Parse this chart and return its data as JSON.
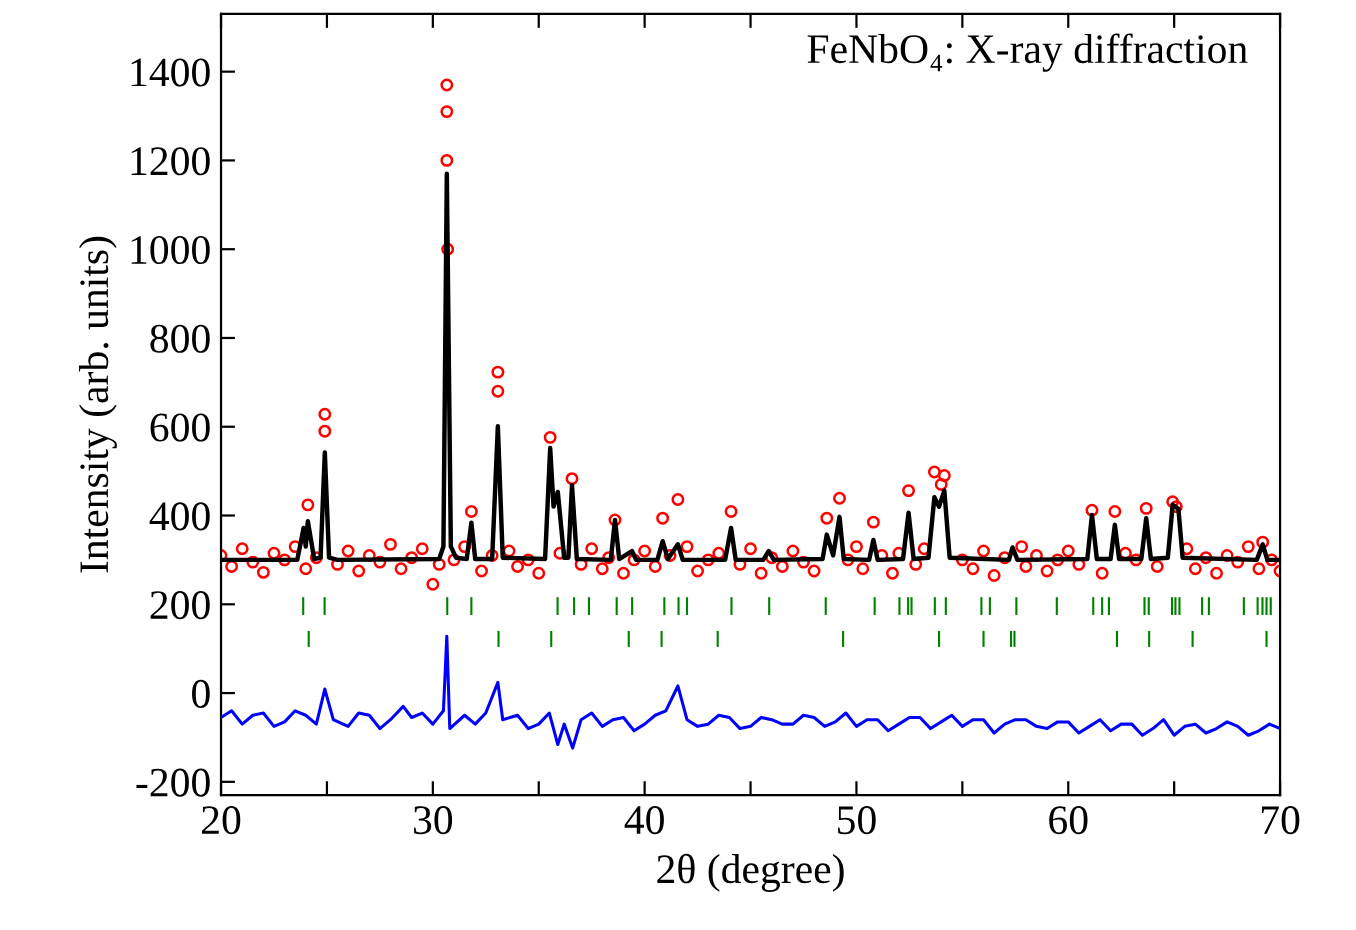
{
  "chart_data": {
    "type": "scatter",
    "xlabel": "2θ (degree)",
    "ylabel": "Intensity (arb. units)",
    "annotations": [
      "FeNbO₄: X-ray diffraction"
    ],
    "xlim": [
      20,
      70
    ],
    "xticks": [
      20,
      {
        "value": 25,
        "label": null
      },
      30,
      {
        "value": 35,
        "label": null
      },
      40,
      {
        "value": 45,
        "label": null
      },
      50,
      {
        "value": 55,
        "label": null
      },
      60,
      {
        "value": 65,
        "label": null
      },
      70
    ],
    "ylim": [
      -230,
      1530
    ],
    "yticks": [
      -200,
      0,
      200,
      400,
      600,
      800,
      1000,
      1200,
      1400
    ],
    "grid": false,
    "legend": false,
    "series": [
      {
        "marker": "circle",
        "color": "#ff0000",
        "x": [
          20,
          20.5,
          21,
          21.5,
          22,
          22.5,
          23,
          23.5,
          24,
          24.5,
          25.5,
          26,
          26.5,
          27,
          27.5,
          28,
          28.5,
          29,
          29.5,
          30,
          30.3,
          31,
          31.5,
          32.3,
          32.8,
          33.6,
          34,
          34.5,
          35,
          36,
          37,
          37.5,
          38,
          38.3,
          39,
          39.5,
          40,
          40.5,
          41.2,
          42,
          42.5,
          43,
          43.5,
          44.5,
          45,
          45.5,
          46,
          46.5,
          47,
          47.5,
          48,
          49.6,
          50,
          50.3,
          51.2,
          51.7,
          52,
          52.8,
          53.2,
          55,
          55.5,
          56,
          56.5,
          57,
          57.8,
          58,
          58.5,
          59,
          59.5,
          60,
          60.5,
          61.6,
          62.7,
          63.2,
          64.2,
          65.6,
          66,
          66.5,
          67,
          67.5,
          68,
          68.5,
          69,
          69.6,
          70,
          24.1,
          24.9,
          24.9,
          30.66,
          30.66,
          30.66,
          30.7,
          31.82,
          33.07,
          33.07,
          35.54,
          36.57,
          38.6,
          40.85,
          41.57,
          44.08,
          48.6,
          49.2,
          50.8,
          52.46,
          53.68,
          54.0,
          54.15,
          61.12,
          62.2,
          63.68,
          64.93,
          65.1,
          69.18
        ],
        "values": [
          310,
          285,
          325,
          295,
          272,
          315,
          300,
          330,
          280,
          305,
          290,
          320,
          275,
          310,
          295,
          335,
          280,
          305,
          325,
          245,
          290,
          300,
          330,
          275,
          310,
          320,
          285,
          300,
          270,
          315,
          290,
          325,
          280,
          305,
          270,
          300,
          320,
          285,
          310,
          330,
          275,
          300,
          315,
          290,
          325,
          270,
          305,
          285,
          320,
          295,
          275,
          300,
          330,
          280,
          310,
          270,
          315,
          290,
          325,
          300,
          280,
          320,
          265,
          305,
          330,
          285,
          310,
          275,
          300,
          320,
          290,
          270,
          315,
          300,
          285,
          325,
          280,
          305,
          270,
          310,
          295,
          330,
          280,
          300,
          275,
          424,
          628,
          590,
          1370,
          1310,
          1200,
          1000,
          409,
          723,
          680,
          576,
          483,
          390,
          394,
          436,
          409,
          394,
          439,
          385,
          456,
          498,
          470,
          490,
          412,
          409,
          416,
          431,
          420,
          340
        ]
      },
      {
        "type": "line",
        "color": "#000000",
        "x": [
          20,
          23.6,
          23.9,
          24.0,
          24.1,
          24.4,
          24.7,
          24.9,
          25.1,
          25.5,
          30.3,
          30.5,
          30.66,
          30.85,
          31.1,
          31.6,
          31.82,
          32.0,
          32.8,
          33.07,
          33.3,
          35.3,
          35.54,
          35.7,
          35.9,
          36.2,
          36.4,
          36.57,
          36.8,
          38.4,
          38.6,
          38.8,
          39.4,
          39.6,
          40.6,
          40.85,
          41.1,
          41.57,
          41.8,
          43.8,
          44.08,
          44.3,
          45.6,
          45.86,
          46.1,
          48.4,
          48.6,
          48.9,
          49.2,
          49.4,
          50.6,
          50.8,
          51.0,
          52.2,
          52.46,
          52.7,
          53.4,
          53.68,
          53.9,
          54.15,
          54.4,
          57.2,
          57.37,
          57.6,
          60.9,
          61.12,
          61.35,
          62.0,
          62.2,
          62.4,
          63.45,
          63.68,
          63.9,
          64.7,
          64.93,
          65.2,
          65.4,
          68.9,
          69.18,
          69.4,
          70
        ],
        "values": [
          300,
          300,
          372,
          330,
          387,
          302,
          305,
          542,
          305,
          300,
          302,
          330,
          1170,
          330,
          305,
          302,
          384,
          302,
          302,
          601,
          305,
          302,
          552,
          420,
          453,
          305,
          305,
          468,
          302,
          300,
          390,
          302,
          320,
          300,
          300,
          342,
          302,
          335,
          300,
          300,
          372,
          300,
          300,
          320,
          300,
          302,
          357,
          310,
          397,
          302,
          300,
          345,
          300,
          302,
          406,
          302,
          305,
          441,
          420,
          456,
          305,
          300,
          328,
          300,
          302,
          401,
          302,
          302,
          379,
          302,
          302,
          394,
          302,
          305,
          424,
          415,
          305,
          300,
          335,
          300,
          300
        ]
      },
      {
        "type": "line",
        "color": "#0000ff",
        "x": [
          20,
          20.5,
          21,
          21.5,
          22,
          22.5,
          23,
          23.5,
          24,
          24.5,
          24.9,
          25.3,
          26,
          26.5,
          27,
          27.5,
          28,
          28.6,
          29,
          29.5,
          30,
          30.5,
          30.66,
          30.8,
          31.5,
          32,
          32.5,
          33.07,
          33.3,
          34,
          34.5,
          35,
          35.5,
          35.9,
          36.2,
          36.6,
          37,
          37.5,
          38,
          38.5,
          39,
          39.5,
          40,
          40.5,
          41,
          41.57,
          42,
          42.5,
          43,
          43.5,
          44,
          44.5,
          45,
          45.5,
          46,
          46.5,
          47,
          47.5,
          48,
          48.5,
          49,
          49.5,
          50,
          50.5,
          51,
          51.5,
          52,
          52.5,
          53,
          53.5,
          54,
          54.5,
          55,
          55.5,
          56,
          56.5,
          57,
          57.5,
          58,
          58.5,
          59,
          59.5,
          60,
          60.5,
          61,
          61.5,
          62,
          62.5,
          63,
          63.5,
          64,
          64.5,
          65,
          65.5,
          66,
          66.5,
          67,
          67.5,
          68,
          68.5,
          69,
          69.5,
          70
        ],
        "values": [
          -55,
          -40,
          -70,
          -50,
          -45,
          -75,
          -65,
          -40,
          -50,
          -70,
          9,
          -60,
          -75,
          -45,
          -50,
          -80,
          -60,
          -30,
          -55,
          -45,
          -70,
          -40,
          128,
          -80,
          -50,
          -70,
          -45,
          24,
          -60,
          -50,
          -80,
          -70,
          -45,
          -116,
          -70,
          -124,
          -60,
          -45,
          -75,
          -60,
          -55,
          -85,
          -70,
          -50,
          -40,
          16,
          -60,
          -75,
          -70,
          -50,
          -55,
          -80,
          -75,
          -55,
          -60,
          -70,
          -70,
          -50,
          -55,
          -75,
          -65,
          -45,
          -75,
          -60,
          -60,
          -85,
          -70,
          -55,
          -55,
          -80,
          -65,
          -50,
          -75,
          -60,
          -60,
          -90,
          -70,
          -60,
          -60,
          -75,
          -80,
          -65,
          -65,
          -90,
          -75,
          -60,
          -85,
          -70,
          -70,
          -95,
          -80,
          -60,
          -95,
          -75,
          -70,
          -90,
          -80,
          -65,
          -75,
          -95,
          -85,
          -70,
          -80
        ]
      },
      {
        "type": "bar",
        "color": "#008000",
        "base": [
          176,
          176,
          176,
          176,
          176,
          176,
          176,
          176,
          176,
          176,
          176,
          176,
          176,
          176,
          176,
          176,
          176,
          176,
          176,
          176,
          176,
          176,
          176,
          176,
          176,
          176,
          176,
          176,
          176,
          176,
          176,
          176,
          176,
          176,
          176,
          176,
          176,
          176,
          176,
          176
        ],
        "x": [
          23.88,
          24.89,
          30.68,
          31.82,
          35.89,
          36.67,
          37.37,
          38.68,
          39.41,
          40.93,
          41.6,
          42.0,
          44.1,
          45.88,
          48.55,
          50.86,
          52.03,
          52.44,
          52.6,
          53.7,
          54.22,
          55.9,
          56.3,
          57.55,
          59.46,
          61.18,
          61.6,
          61.92,
          63.6,
          63.8,
          64.9,
          65.06,
          65.25,
          66.32,
          66.64,
          68.29,
          68.94,
          69.17,
          69.36,
          69.56
        ],
        "values": [
          40,
          40,
          40,
          40,
          40,
          40,
          40,
          40,
          40,
          40,
          40,
          40,
          40,
          40,
          40,
          40,
          40,
          40,
          40,
          40,
          40,
          40,
          40,
          40,
          40,
          40,
          40,
          40,
          40,
          40,
          40,
          40,
          40,
          40,
          40,
          40,
          40,
          40,
          40,
          40
        ]
      },
      {
        "type": "bar",
        "color": "#008000",
        "base": [
          104,
          104,
          104,
          104,
          104,
          104,
          104,
          104,
          104,
          104,
          104,
          104,
          104,
          104,
          104
        ],
        "x": [
          24.14,
          33.1,
          35.59,
          39.25,
          40.8,
          43.45,
          49.37,
          53.9,
          56.0,
          57.3,
          57.46,
          62.3,
          63.82,
          65.87,
          69.36
        ],
        "values": [
          36,
          36,
          36,
          36,
          36,
          36,
          36,
          36,
          36,
          36,
          36,
          36,
          36,
          36,
          36
        ]
      }
    ]
  }
}
